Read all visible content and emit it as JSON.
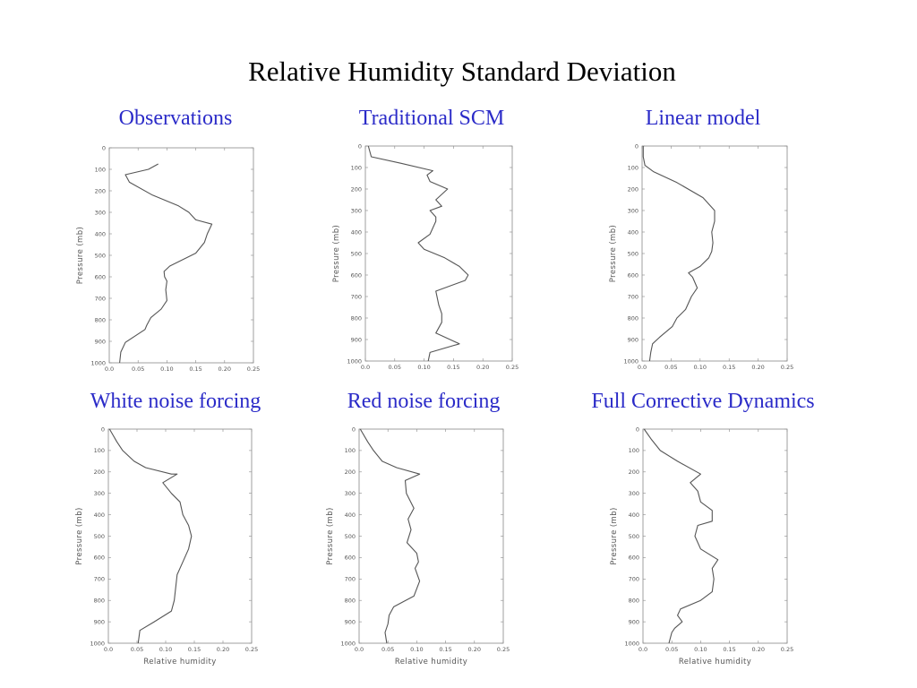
{
  "page": {
    "title": "Relative Humidity Standard Deviation"
  },
  "chart_data": [
    {
      "type": "line",
      "title": "Observations",
      "xlabel": "",
      "ylabel": "Pressure (mb)",
      "xlim": [
        0,
        0.25
      ],
      "ylim": [
        1000,
        0
      ],
      "xticks": [
        "0.0",
        "0.05",
        "0.10",
        "0.15",
        "0.20",
        "0.25"
      ],
      "yticks": [
        "0",
        "100",
        "200",
        "300",
        "400",
        "500",
        "600",
        "700",
        "800",
        "900",
        "1000"
      ],
      "x": [
        0.085,
        0.068,
        0.028,
        0.035,
        0.075,
        0.12,
        0.138,
        0.15,
        0.178,
        0.17,
        0.165,
        0.15,
        0.105,
        0.095,
        0.096,
        0.1,
        0.098,
        0.1,
        0.09,
        0.072,
        0.065,
        0.062,
        0.028,
        0.02,
        0.018
      ],
      "y": [
        75,
        100,
        125,
        160,
        220,
        270,
        300,
        335,
        355,
        400,
        440,
        490,
        550,
        575,
        600,
        620,
        660,
        710,
        750,
        790,
        825,
        845,
        905,
        950,
        1000
      ]
    },
    {
      "type": "line",
      "title": "Traditional SCM",
      "xlabel": "",
      "ylabel": "Pressure (mb)",
      "xlim": [
        0,
        0.25
      ],
      "ylim": [
        1000,
        0
      ],
      "xticks": [
        "0.0",
        "0.05",
        "0.10",
        "0.15",
        "0.20",
        "0.25"
      ],
      "yticks": [
        "0",
        "100",
        "200",
        "300",
        "400",
        "500",
        "600",
        "700",
        "800",
        "900",
        "1000"
      ],
      "x": [
        0.005,
        0.01,
        0.06,
        0.115,
        0.105,
        0.11,
        0.14,
        0.12,
        0.13,
        0.11,
        0.12,
        0.12,
        0.11,
        0.09,
        0.1,
        0.135,
        0.16,
        0.175,
        0.17,
        0.12,
        0.125,
        0.13,
        0.13,
        0.12,
        0.16,
        0.11,
        0.107
      ],
      "y": [
        0,
        50,
        80,
        115,
        135,
        165,
        200,
        250,
        280,
        300,
        330,
        350,
        410,
        450,
        480,
        520,
        560,
        600,
        625,
        675,
        740,
        780,
        820,
        870,
        920,
        960,
        1000
      ]
    },
    {
      "type": "line",
      "title": "Linear model",
      "xlabel": "",
      "ylabel": "Pressure (mb)",
      "xlim": [
        0,
        0.25
      ],
      "ylim": [
        1000,
        0
      ],
      "xticks": [
        "0.0",
        "0.05",
        "0.10",
        "0.15",
        "0.20",
        "0.25"
      ],
      "yticks": [
        "0",
        "100",
        "200",
        "300",
        "400",
        "500",
        "600",
        "700",
        "800",
        "900",
        "1000"
      ],
      "x": [
        0.002,
        0.002,
        0.005,
        0.02,
        0.06,
        0.105,
        0.125,
        0.125,
        0.12,
        0.122,
        0.12,
        0.115,
        0.1,
        0.08,
        0.087,
        0.095,
        0.085,
        0.075,
        0.06,
        0.052,
        0.03,
        0.018,
        0.015,
        0.013
      ],
      "y": [
        0,
        50,
        90,
        120,
        170,
        240,
        300,
        350,
        400,
        450,
        490,
        520,
        560,
        590,
        610,
        660,
        700,
        760,
        800,
        840,
        890,
        920,
        960,
        1000
      ]
    },
    {
      "type": "line",
      "title": "White noise forcing",
      "xlabel": "Relative humidity",
      "ylabel": "Pressure (mb)",
      "xlim": [
        0,
        0.25
      ],
      "ylim": [
        1000,
        0
      ],
      "xticks": [
        "0.0",
        "0.05",
        "0.10",
        "0.15",
        "0.20",
        "0.25"
      ],
      "yticks": [
        "0",
        "100",
        "200",
        "300",
        "400",
        "500",
        "600",
        "700",
        "800",
        "900",
        "1000"
      ],
      "x": [
        0.002,
        0.015,
        0.025,
        0.045,
        0.065,
        0.11,
        0.12,
        0.095,
        0.11,
        0.125,
        0.13,
        0.14,
        0.145,
        0.14,
        0.13,
        0.12,
        0.115,
        0.11,
        0.08,
        0.055,
        0.052
      ],
      "y": [
        0,
        60,
        100,
        150,
        180,
        210,
        210,
        250,
        300,
        340,
        400,
        450,
        500,
        560,
        620,
        680,
        800,
        850,
        900,
        940,
        1000
      ]
    },
    {
      "type": "line",
      "title": "Red noise forcing",
      "xlabel": "Relative humidity",
      "ylabel": "Pressure (mb)",
      "xlim": [
        0,
        0.25
      ],
      "ylim": [
        1000,
        0
      ],
      "xticks": [
        "0.0",
        "0.05",
        "0.10",
        "0.15",
        "0.20",
        "0.25"
      ],
      "yticks": [
        "0",
        "100",
        "200",
        "300",
        "400",
        "500",
        "600",
        "700",
        "800",
        "900",
        "1000"
      ],
      "x": [
        0.002,
        0.015,
        0.025,
        0.04,
        0.065,
        0.105,
        0.08,
        0.082,
        0.095,
        0.085,
        0.09,
        0.083,
        0.1,
        0.103,
        0.097,
        0.105,
        0.095,
        0.06,
        0.052,
        0.05,
        0.045,
        0.048
      ],
      "y": [
        0,
        60,
        100,
        150,
        180,
        210,
        240,
        300,
        370,
        420,
        470,
        530,
        580,
        620,
        650,
        710,
        780,
        830,
        870,
        910,
        950,
        1000
      ]
    },
    {
      "type": "line",
      "title": "Full Corrective Dynamics",
      "xlabel": "Relative humidity",
      "ylabel": "Pressure (mb)",
      "xlim": [
        0,
        0.25
      ],
      "ylim": [
        1000,
        0
      ],
      "xticks": [
        "0.0",
        "0.05",
        "0.10",
        "0.15",
        "0.20",
        "0.25"
      ],
      "yticks": [
        "0",
        "100",
        "200",
        "300",
        "400",
        "500",
        "600",
        "700",
        "800",
        "900",
        "1000"
      ],
      "x": [
        0.002,
        0.015,
        0.03,
        0.06,
        0.1,
        0.082,
        0.095,
        0.1,
        0.12,
        0.12,
        0.095,
        0.09,
        0.1,
        0.13,
        0.12,
        0.123,
        0.12,
        0.1,
        0.065,
        0.06,
        0.068,
        0.055,
        0.05,
        0.045
      ],
      "y": [
        0,
        50,
        100,
        150,
        210,
        250,
        290,
        340,
        380,
        430,
        450,
        500,
        560,
        610,
        650,
        700,
        760,
        800,
        840,
        870,
        900,
        930,
        950,
        1000
      ]
    }
  ]
}
